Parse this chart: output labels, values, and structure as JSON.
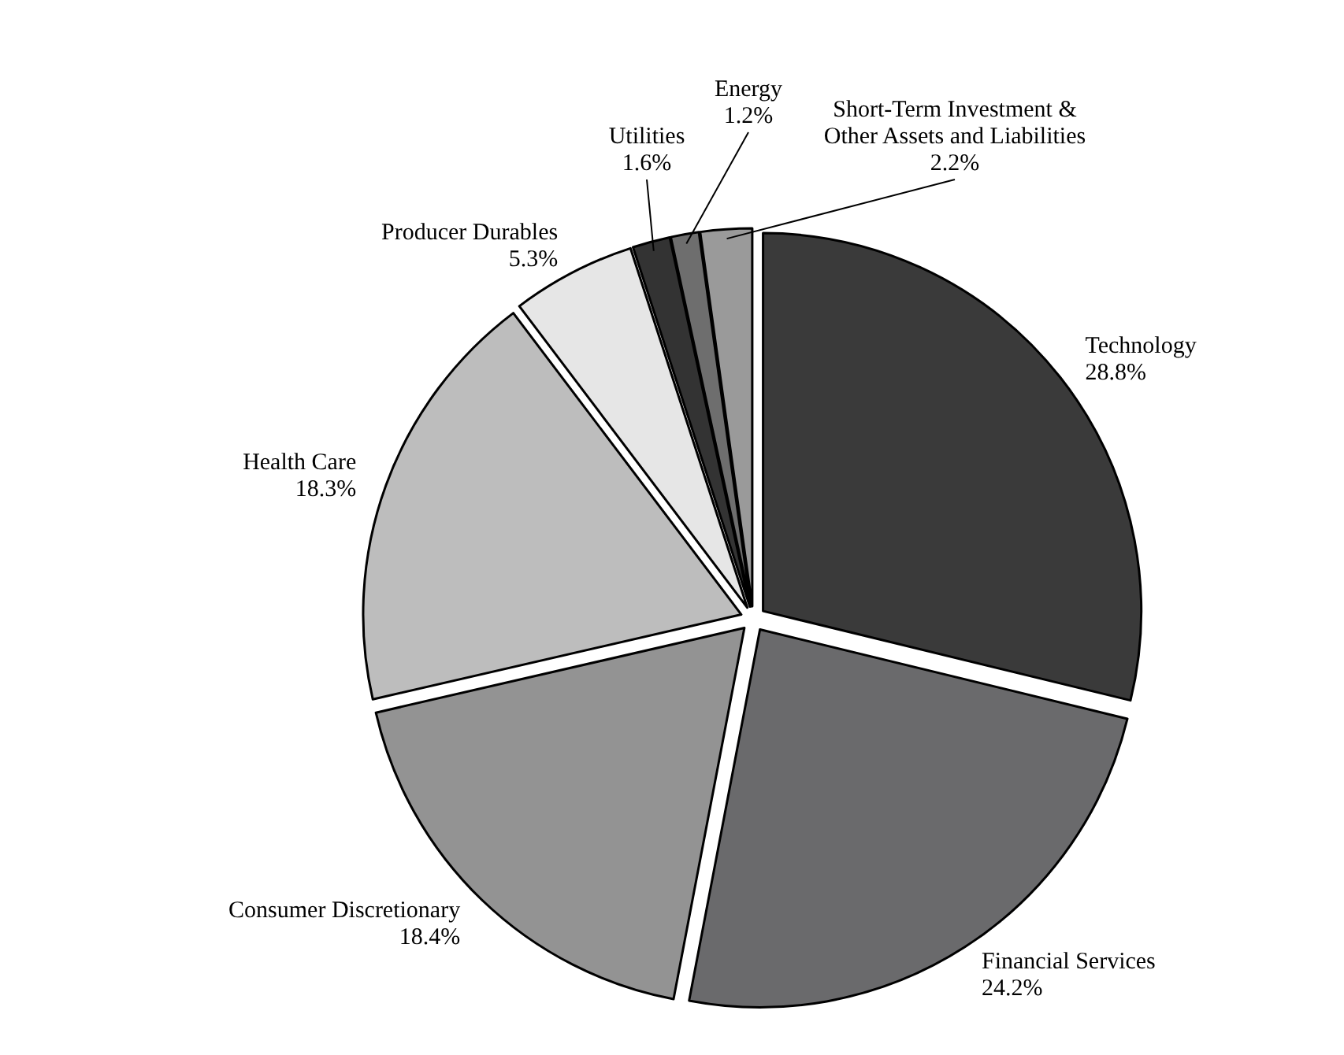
{
  "chart_data": {
    "type": "pie",
    "categories": [
      "Technology",
      "Financial Services",
      "Consumer Discretionary",
      "Health Care",
      "Producer Durables",
      "Utilities",
      "Energy",
      "Short-Term Investment & Other Assets and Liabilities"
    ],
    "values": [
      28.8,
      24.2,
      18.4,
      18.3,
      5.3,
      1.6,
      1.2,
      2.2
    ],
    "value_labels": [
      "28.8%",
      "24.2%",
      "18.4%",
      "18.3%",
      "5.3%",
      "1.6%",
      "1.2%",
      "2.2%"
    ],
    "colors": [
      "#3a3a3a",
      "#6a6a6c",
      "#939393",
      "#bdbdbd",
      "#e6e6e6",
      "#333333",
      "#6e6e6e",
      "#9a9a9a"
    ]
  }
}
